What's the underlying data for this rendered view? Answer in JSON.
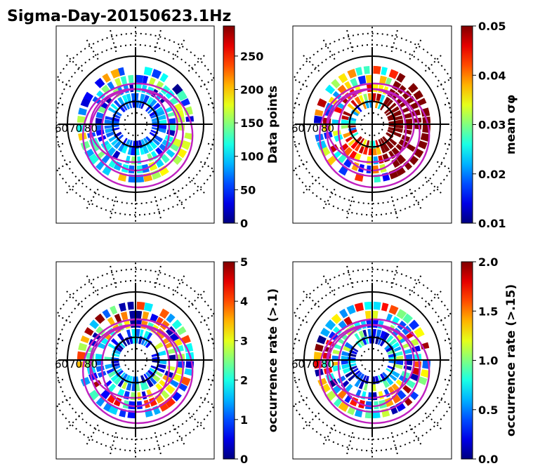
{
  "figure_title": "Sigma-Day-20150623.1Hz",
  "chart_data": [
    {
      "type": "heatmap",
      "projection": "polar",
      "latitude_labels": [
        "60",
        "70",
        "80"
      ],
      "colorbar": {
        "label": "Data points",
        "ticks": [
          "0",
          "50",
          "100",
          "150",
          "200",
          "250"
        ],
        "range": [
          0,
          295
        ],
        "colormap": "jet"
      },
      "bins": {
        "rings": [
          [
            66,
            0,
            230
          ],
          [
            70,
            40,
            180
          ],
          [
            74,
            0,
            160
          ],
          [
            78,
            40,
            120
          ],
          [
            81,
            20,
            90
          ]
        ]
      }
    },
    {
      "type": "heatmap",
      "projection": "polar",
      "latitude_labels": [
        "60",
        "70",
        "80"
      ],
      "colorbar": {
        "label": "mean σφ",
        "ticks": [
          "0.01",
          "0.02",
          "0.03",
          "0.04",
          "0.05"
        ],
        "range": [
          0.01,
          0.05
        ],
        "colormap": "jet"
      },
      "bins": {
        "rings": [
          [
            66,
            0.012,
            0.05
          ],
          [
            70,
            0.015,
            0.05
          ],
          [
            74,
            0.02,
            0.05
          ],
          [
            78,
            0.02,
            0.05
          ],
          [
            81,
            0.015,
            0.05
          ]
        ]
      }
    },
    {
      "type": "heatmap",
      "projection": "polar",
      "latitude_labels": [
        "60",
        "70",
        "80"
      ],
      "colorbar": {
        "label": "occurrence rate (>.1)",
        "ticks": [
          "0",
          "1",
          "2",
          "3",
          "4",
          "5"
        ],
        "range": [
          0,
          5
        ],
        "colormap": "jet"
      },
      "bins": {
        "rings": [
          [
            66,
            0,
            5
          ],
          [
            70,
            0,
            5
          ],
          [
            74,
            0,
            4
          ],
          [
            78,
            0,
            3
          ],
          [
            81,
            0,
            2
          ]
        ]
      }
    },
    {
      "type": "heatmap",
      "projection": "polar",
      "latitude_labels": [
        "60",
        "70",
        "80"
      ],
      "colorbar": {
        "label": "occurrence rate (>.15)",
        "ticks": [
          "0.0",
          "0.5",
          "1.0",
          "1.5",
          "2.0"
        ],
        "range": [
          0,
          2
        ],
        "colormap": "jet"
      },
      "bins": {
        "rings": [
          [
            66,
            0,
            2
          ],
          [
            70,
            0,
            2
          ],
          [
            74,
            0,
            1.5
          ],
          [
            78,
            0,
            1.2
          ],
          [
            81,
            0,
            1
          ]
        ]
      }
    }
  ]
}
